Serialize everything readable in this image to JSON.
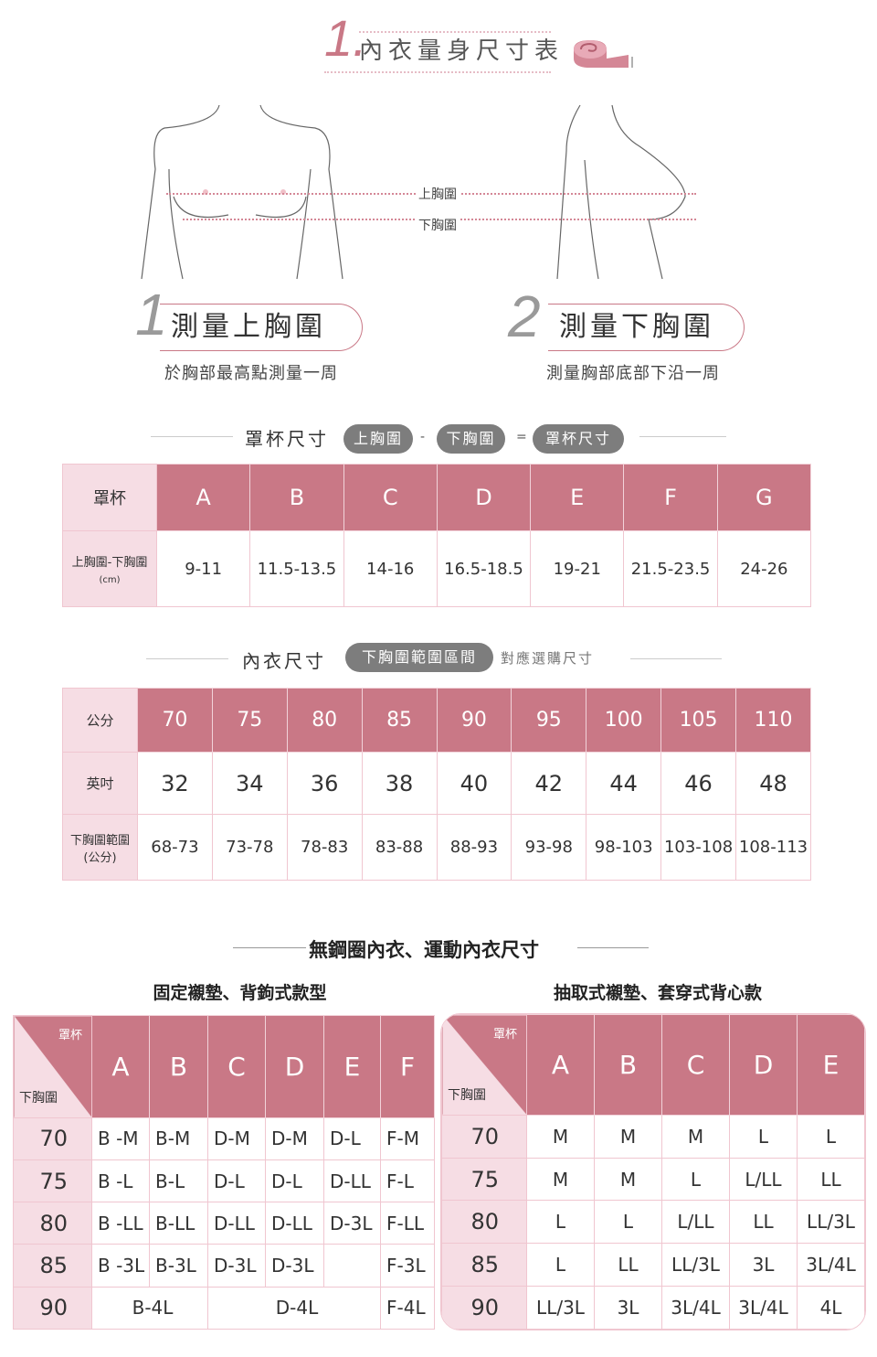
{
  "header": {
    "number": "1.",
    "title": "內衣量身尺寸表",
    "icon": "tape-measure-icon"
  },
  "illustration": {
    "upper_label": "上胸圍",
    "lower_label": "下胸圍"
  },
  "steps": [
    {
      "number": "1",
      "title": "測量上胸圍",
      "subtitle": "於胸部最高點測量一周"
    },
    {
      "number": "2",
      "title": "測量下胸圍",
      "subtitle": "測量胸部底部下沿一周"
    }
  ],
  "cup_section": {
    "heading": "罩杯尺寸",
    "formula": [
      "上胸圍",
      "-",
      "下胸圍",
      "=",
      "罩杯尺寸"
    ]
  },
  "cup_table": {
    "row_header": "罩杯",
    "row_label": "上胸圍-下胸圍",
    "row_unit": "(cm)",
    "cups": [
      "A",
      "B",
      "C",
      "D",
      "E",
      "F",
      "G"
    ],
    "ranges": [
      "9-11",
      "11.5-13.5",
      "14-16",
      "16.5-18.5",
      "19-21",
      "21.5-23.5",
      "24-26"
    ]
  },
  "size_section": {
    "heading": "內衣尺寸",
    "pill": "下胸圍範圍區間",
    "suffix": "對應選購尺寸"
  },
  "size_table": {
    "cm_label": "公分",
    "inch_label": "英吋",
    "range_label": "下胸圍範圍",
    "range_unit": "(公分)",
    "cm": [
      "70",
      "75",
      "80",
      "85",
      "90",
      "95",
      "100",
      "105",
      "110"
    ],
    "inch": [
      "32",
      "34",
      "36",
      "38",
      "40",
      "42",
      "44",
      "46",
      "48"
    ],
    "ranges": [
      "68-73",
      "73-78",
      "78-83",
      "83-88",
      "88-93",
      "93-98",
      "98-103",
      "103-108",
      "108-113"
    ]
  },
  "wireless_section": {
    "heading": "無鋼圈內衣、運動內衣尺寸"
  },
  "fixed_table": {
    "subtitle": "固定襯墊、背鉤式款型",
    "corner_cup": "罩杯",
    "corner_under": "下胸圍",
    "cups": [
      "A",
      "B",
      "C",
      "D",
      "E",
      "F"
    ],
    "rows": [
      {
        "under": "70",
        "cells": [
          {
            "t": "B -M"
          },
          {
            "t": "B-M"
          },
          {
            "t": "D-M"
          },
          {
            "t": "D-M"
          },
          {
            "t": "D-L"
          },
          {
            "t": "F-M"
          }
        ]
      },
      {
        "under": "75",
        "cells": [
          {
            "t": "B -L"
          },
          {
            "t": "B-L"
          },
          {
            "t": "D-L"
          },
          {
            "t": "D-L"
          },
          {
            "t": "D-LL"
          },
          {
            "t": "F-L"
          }
        ]
      },
      {
        "under": "80",
        "cells": [
          {
            "t": "B -LL"
          },
          {
            "t": "B-LL"
          },
          {
            "t": "D-LL"
          },
          {
            "t": "D-LL"
          },
          {
            "t": "D-3L"
          },
          {
            "t": "F-LL"
          }
        ]
      },
      {
        "under": "85",
        "cells": [
          {
            "t": "B -3L"
          },
          {
            "t": "B-3L"
          },
          {
            "t": "D-3L"
          },
          {
            "t": "D-3L"
          },
          {
            "t": ""
          },
          {
            "t": "F-3L"
          }
        ]
      },
      {
        "under": "90",
        "cells": [
          {
            "t": "B-4L",
            "span": 2
          },
          {
            "t": "D-4L",
            "span": 3
          },
          {
            "t": "F-4L"
          }
        ]
      }
    ]
  },
  "removable_table": {
    "subtitle": "抽取式襯墊、套穿式背心款",
    "corner_cup": "罩杯",
    "corner_under": "下胸圍",
    "cups": [
      "A",
      "B",
      "C",
      "D",
      "E"
    ],
    "rows": [
      {
        "under": "70",
        "cells": [
          {
            "t": "M"
          },
          {
            "t": "M"
          },
          {
            "t": "M"
          },
          {
            "t": "L"
          },
          {
            "t": "L"
          }
        ]
      },
      {
        "under": "75",
        "cells": [
          {
            "t": "M"
          },
          {
            "t": "M"
          },
          {
            "t": "L"
          },
          {
            "t": "L/LL"
          },
          {
            "t": "LL"
          }
        ]
      },
      {
        "under": "80",
        "cells": [
          {
            "t": "L"
          },
          {
            "t": "L"
          },
          {
            "t": "L/LL"
          },
          {
            "t": "LL"
          },
          {
            "t": "LL/3L"
          }
        ]
      },
      {
        "under": "85",
        "cells": [
          {
            "t": "L"
          },
          {
            "t": "LL"
          },
          {
            "t": "LL/3L"
          },
          {
            "t": "3L"
          },
          {
            "t": "3L/4L"
          }
        ]
      },
      {
        "under": "90",
        "cells": [
          {
            "t": "LL/3L"
          },
          {
            "t": "3L"
          },
          {
            "t": "3L/4L"
          },
          {
            "t": "3L/4L"
          },
          {
            "t": "4L"
          }
        ]
      }
    ]
  },
  "colors": {
    "accent": "#c97886",
    "side": "#f6dde4",
    "pill": "#7d7d7d",
    "border": "#f0c6d0"
  }
}
